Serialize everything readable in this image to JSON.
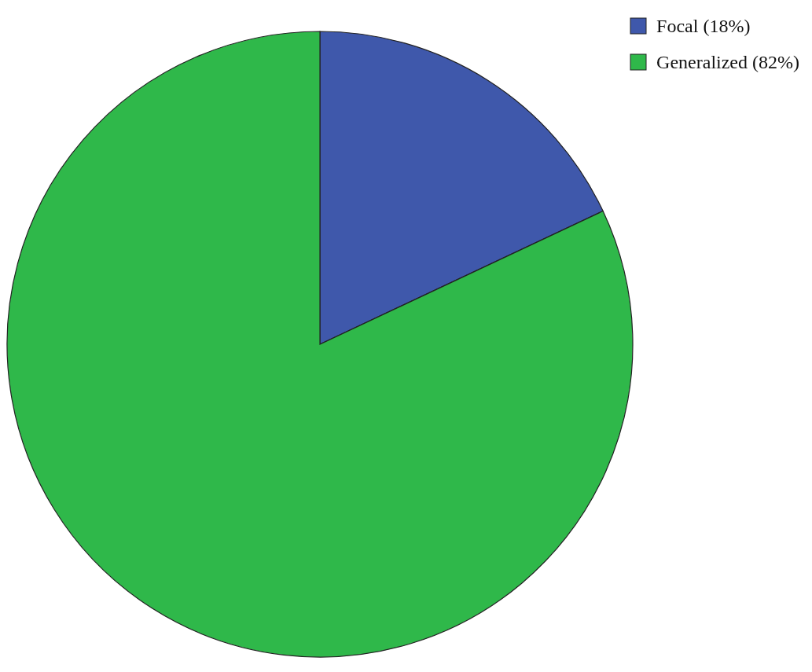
{
  "chart_data": {
    "type": "pie",
    "categories": [
      "Focal (18%)",
      "Generalized (82%)"
    ],
    "values": [
      18,
      82
    ],
    "colors": [
      "#3f58ab",
      "#2fb84a"
    ],
    "legend": "top right"
  }
}
